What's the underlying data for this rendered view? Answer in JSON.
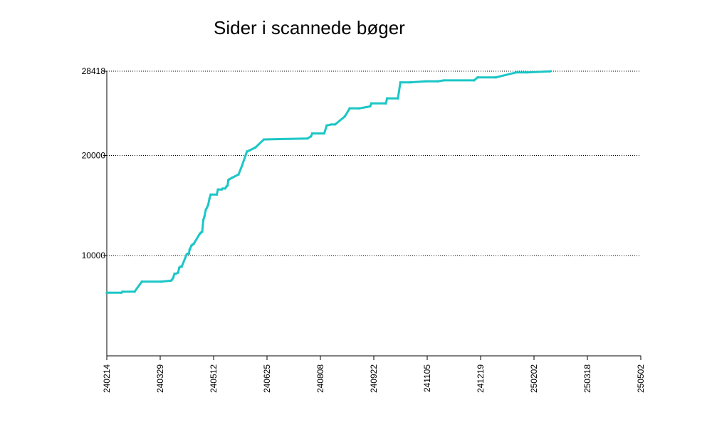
{
  "chart_data": {
    "type": "line",
    "title": "Sider i scannede bøger",
    "xlabel": "",
    "ylabel": "",
    "y_ticks": [
      10000,
      20000,
      28418
    ],
    "y_tick_labels": [
      "10000",
      "20000",
      "28418"
    ],
    "ylim": [
      0,
      28418
    ],
    "x_tick_labels": [
      "240214",
      "240329",
      "240512",
      "240625",
      "240808",
      "240922",
      "241105",
      "241219",
      "250202",
      "250318",
      "250502"
    ],
    "grid": "horizontal-dotted",
    "line_color": "#1cc6c6",
    "series": [
      {
        "x": [
          0,
          12,
          13,
          23,
          29,
          45,
          53,
          54,
          55,
          56,
          57,
          59,
          60,
          61,
          62,
          66,
          67,
          68,
          68.5,
          69,
          70,
          71,
          72,
          77,
          78,
          79,
          80,
          81,
          82,
          83,
          84,
          85,
          86,
          91,
          92,
          95,
          96,
          98,
          99,
          100,
          100.5,
          101,
          104,
          109,
          112,
          116,
          118,
          123,
          130,
          166,
          169,
          170,
          175,
          180,
          182,
          186,
          189,
          197,
          201,
          209,
          218,
          219,
          231,
          232,
          241,
          243,
          251,
          264,
          274,
          279,
          304,
          307,
          322,
          339,
          348,
          367
        ],
        "y": [
          6300,
          6300,
          6400,
          6400,
          7400,
          7400,
          7500,
          7600,
          7800,
          8200,
          8200,
          8300,
          8800,
          8900,
          8900,
          10100,
          10200,
          10200,
          10600,
          10700,
          11000,
          11100,
          11200,
          12200,
          12300,
          12400,
          13600,
          14000,
          14600,
          14800,
          15100,
          15700,
          16100,
          16100,
          16600,
          16600,
          16700,
          16700,
          16900,
          17000,
          17500,
          17600,
          17800,
          18100,
          19000,
          20400,
          20500,
          20800,
          21600,
          21700,
          21900,
          22200,
          22200,
          22200,
          23000,
          23100,
          23100,
          23900,
          24700,
          24700,
          24900,
          25200,
          25200,
          25700,
          25700,
          27300,
          27300,
          27400,
          27400,
          27500,
          27500,
          27800,
          27800,
          28300,
          28300,
          28400
        ],
        "x_range": [
          0,
          442
        ]
      }
    ]
  }
}
